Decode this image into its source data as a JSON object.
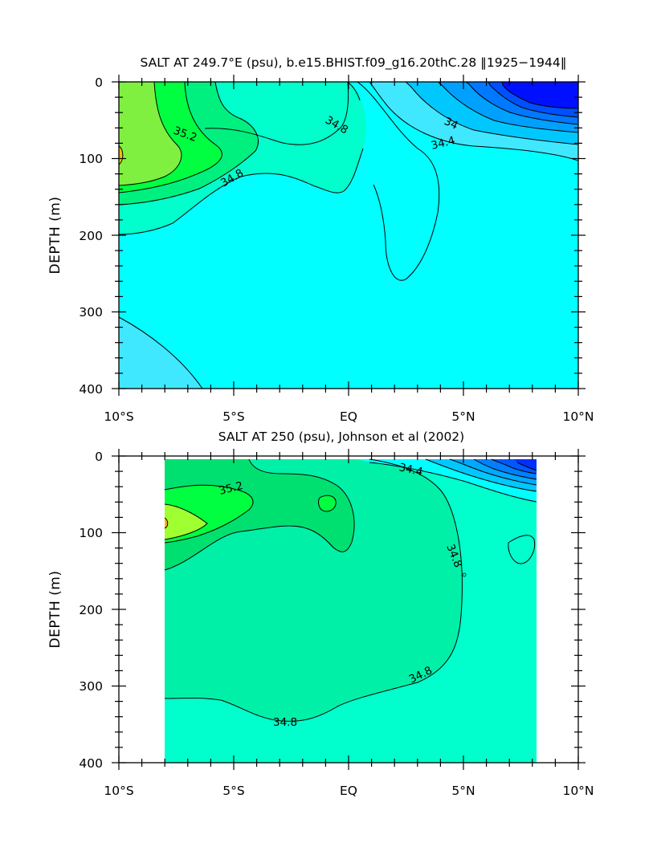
{
  "chart_data": [
    {
      "type": "contour",
      "title": "SALT AT 249.7°E (psu), b.e15.BHIST.f09_g16.20thC.28 ‖1925−1944‖",
      "xlabel": "",
      "ylabel": "DEPTH (m)",
      "xlim": [
        -10,
        10
      ],
      "ylim": [
        400,
        0
      ],
      "x_ticks": [
        -10,
        -5,
        0,
        5,
        10
      ],
      "x_tick_labels": [
        "10°S",
        "5°S",
        "EQ",
        "5°N",
        "10°N"
      ],
      "y_ticks": [
        0,
        100,
        200,
        300,
        400
      ],
      "y_tick_labels": [
        "0",
        "100",
        "200",
        "300",
        "400"
      ],
      "data_extent": {
        "x": [
          -10,
          10
        ],
        "depth": [
          5,
          400
        ]
      },
      "contour_interval": 0.2,
      "background_level": {
        "value": 34.7,
        "color": "#00ffff"
      },
      "contour_labels": [
        "35.2",
        "34.8",
        "34.8",
        "34",
        "34.4"
      ],
      "regions": [
        {
          "range": [
            34.6,
            34.8
          ],
          "color": "#00ffff",
          "region": "deep"
        },
        {
          "range": [
            34.4,
            34.6
          ],
          "color": "#40e8ff",
          "region": "deep lower-left"
        },
        {
          "range": [
            34.8,
            35.0
          ],
          "color": "#00ffcc",
          "region": "near-surface"
        },
        {
          "range": [
            35.0,
            35.2
          ],
          "color": "#00f080",
          "region": "south"
        },
        {
          "range": [
            35.2,
            35.4
          ],
          "color": "#00ff40",
          "region": "south"
        },
        {
          "range": [
            35.4,
            35.6
          ],
          "color": "#80f040",
          "region": "south"
        },
        {
          "range": [
            35.6,
            35.8
          ],
          "color": "#e8c000",
          "region": "south"
        },
        {
          "range": [
            34.4,
            34.6
          ],
          "color": "#40e8ff",
          "region": "north surface"
        },
        {
          "range": [
            34.2,
            34.4
          ],
          "color": "#00c8ff",
          "region": "north surface"
        },
        {
          "range": [
            34.0,
            34.2
          ],
          "color": "#00a0ff",
          "region": "north surface"
        },
        {
          "range": [
            33.8,
            34.0
          ],
          "color": "#0078ff",
          "region": "north surface"
        },
        {
          "range": [
            33.6,
            33.8
          ],
          "color": "#0050ff",
          "region": "north surface"
        },
        {
          "range": [
            33.4,
            33.6
          ],
          "color": "#0010ff",
          "region": "north surface"
        }
      ]
    },
    {
      "type": "contour",
      "title": "SALT AT 250 (psu), Johnson et al (2002)",
      "xlabel": "",
      "ylabel": "DEPTH (m)",
      "xlim": [
        -10,
        10
      ],
      "ylim": [
        400,
        0
      ],
      "x_ticks": [
        -10,
        -5,
        0,
        5,
        10
      ],
      "x_tick_labels": [
        "10°S",
        "5°S",
        "EQ",
        "5°N",
        "10°N"
      ],
      "y_ticks": [
        0,
        100,
        200,
        300,
        400
      ],
      "y_tick_labels": [
        "0",
        "100",
        "200",
        "300",
        "400"
      ],
      "data_extent": {
        "x": [
          -8,
          8.2
        ],
        "depth": [
          5,
          400
        ]
      },
      "contour_interval": 0.2,
      "background_level": {
        "value": 34.7,
        "color": "#00ffcc"
      },
      "contour_labels": [
        "35.2",
        "34.4",
        "34.8",
        "34.8",
        "34.8"
      ],
      "regions": [
        {
          "range": [
            34.6,
            34.8
          ],
          "color": "#00ffcc",
          "region": "deep"
        },
        {
          "range": [
            34.8,
            35.0
          ],
          "color": "#00f0a8",
          "region": "mid"
        },
        {
          "range": [
            35.0,
            35.2
          ],
          "color": "#00e070",
          "region": "south surface"
        },
        {
          "range": [
            35.2,
            35.4
          ],
          "color": "#00ff40",
          "region": "south surface"
        },
        {
          "range": [
            35.4,
            35.6
          ],
          "color": "#a0ff30",
          "region": "south"
        },
        {
          "range": [
            35.6,
            35.8
          ],
          "color": "#ffb000",
          "region": "south"
        },
        {
          "range": [
            34.4,
            34.6
          ],
          "color": "#00ffff",
          "region": "north surface"
        },
        {
          "range": [
            34.2,
            34.4
          ],
          "color": "#00c8ff",
          "region": "north surface"
        },
        {
          "range": [
            34.0,
            34.2
          ],
          "color": "#00a8ff",
          "region": "north surface"
        },
        {
          "range": [
            33.8,
            34.0
          ],
          "color": "#0080ff",
          "region": "north surface"
        },
        {
          "range": [
            33.6,
            33.8
          ],
          "color": "#0058ff",
          "region": "north surface"
        },
        {
          "range": [
            33.4,
            33.6
          ],
          "color": "#0030ff",
          "region": "north surface"
        }
      ]
    }
  ]
}
